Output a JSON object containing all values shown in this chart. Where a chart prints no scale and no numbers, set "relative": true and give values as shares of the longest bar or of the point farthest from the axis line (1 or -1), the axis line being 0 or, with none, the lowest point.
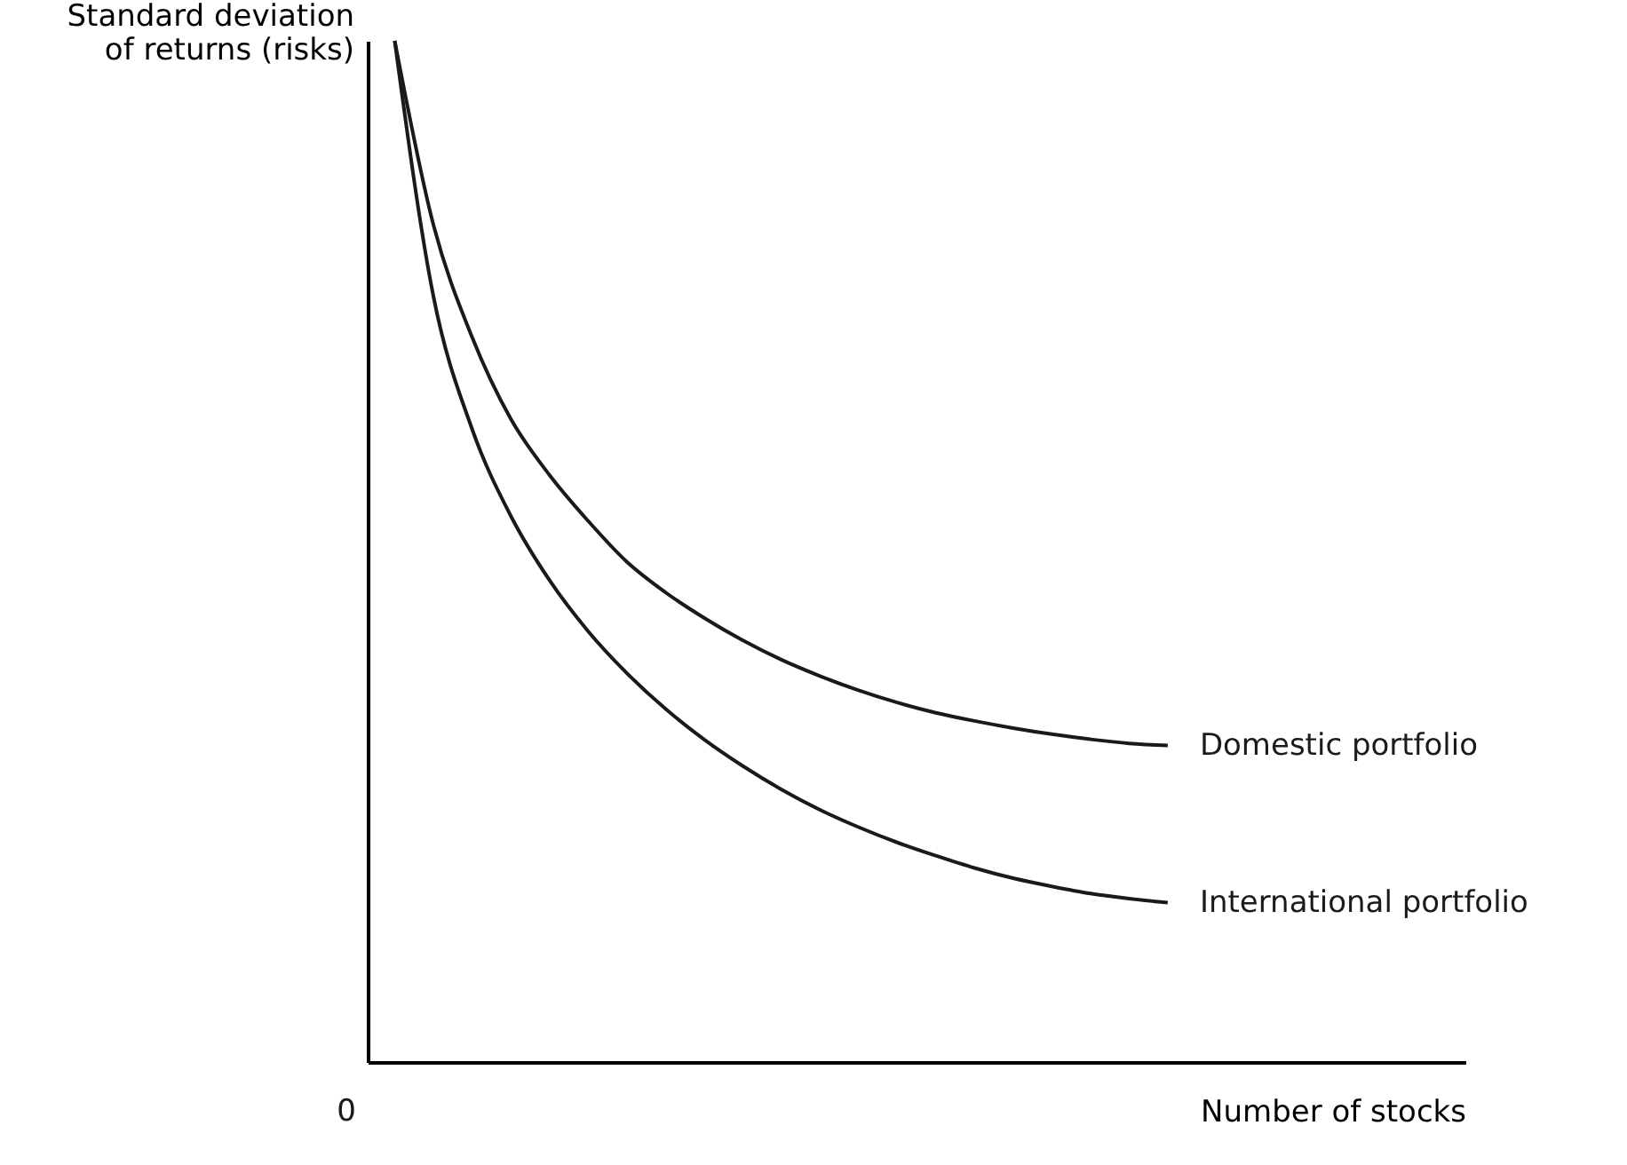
{
  "chart_data": {
    "type": "line",
    "relative": true,
    "xlabel": "Number of stocks",
    "ylabel": "Standard deviation of returns (risks)",
    "annotations": [
      "0"
    ],
    "categories": [
      null,
      null,
      null,
      null,
      null,
      null,
      null,
      null,
      null,
      null,
      null,
      null,
      null,
      null,
      null,
      null,
      null,
      null,
      null,
      null,
      null,
      null,
      null,
      null,
      null,
      null,
      null,
      null
    ],
    "series": [
      {
        "name": "Domestic portfolio",
        "color": "#1a1a1a",
        "values": [
          1,
          0.82,
          0.71,
          0.63,
          0.575,
          0.53,
          0.49,
          0.46,
          0.435,
          0.413,
          0.394,
          0.378,
          0.364,
          0.352,
          0.342,
          0.334,
          0.327,
          0.321,
          0.316,
          0.312,
          0.31,
          null,
          null,
          null,
          null,
          null,
          null,
          null
        ]
      },
      {
        "name": "International portfolio",
        "color": "#1a1a1a",
        "values": [
          1,
          0.75,
          0.62,
          0.535,
          0.472,
          0.422,
          0.381,
          0.346,
          0.316,
          0.29,
          0.267,
          0.247,
          0.23,
          0.215,
          0.202,
          0.19,
          0.18,
          0.172,
          0.165,
          0.16,
          0.156,
          null,
          null,
          null,
          null,
          null,
          null,
          null
        ]
      }
    ],
    "grid": false,
    "legend": false,
    "tick_labels": false
  }
}
